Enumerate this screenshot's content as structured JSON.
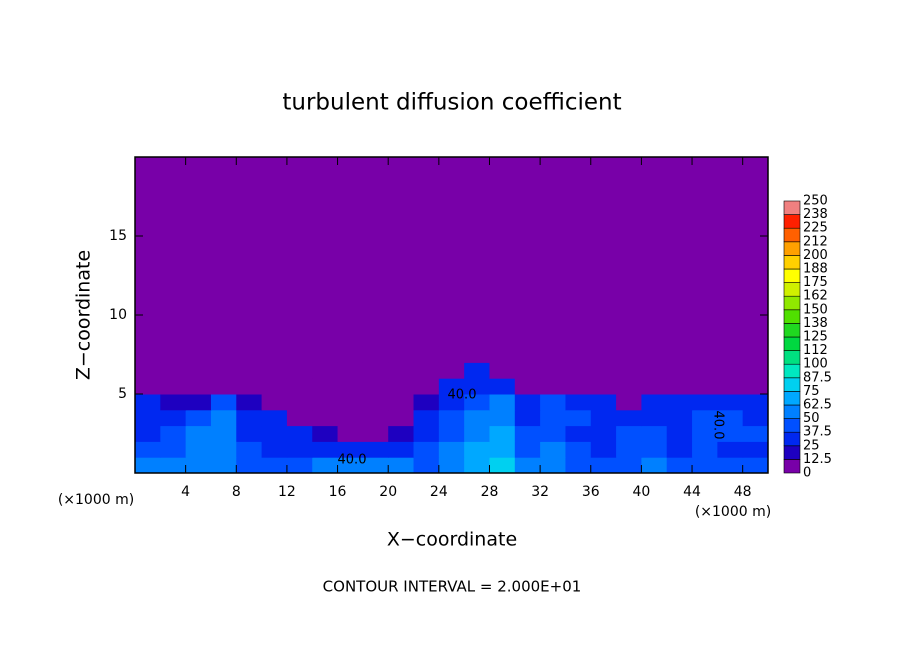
{
  "chart_data": {
    "type": "heatmap",
    "title": "turbulent diffusion coefficient",
    "x_label": "X−coordinate",
    "y_label": "Z−coordinate",
    "x_unit": "(×1000 m)",
    "y_unit": "(×1000 m)",
    "footer": "CONTOUR INTERVAL = 2.000E+01",
    "annotations": [
      "40.0",
      "40.0",
      "40.0"
    ],
    "xlim": [
      0,
      50
    ],
    "ylim": [
      0,
      20
    ],
    "xticks": [
      4,
      8,
      12,
      16,
      20,
      24,
      28,
      32,
      36,
      40,
      44,
      48
    ],
    "yticks": [
      5,
      10,
      15
    ],
    "x": [
      1,
      3,
      5,
      7,
      9,
      11,
      13,
      15,
      17,
      19,
      21,
      23,
      25,
      27,
      29,
      31,
      33,
      35,
      37,
      39,
      41,
      43,
      45,
      47,
      49
    ],
    "y": [
      0.5,
      1.5,
      2.5,
      3.5,
      4.5,
      5.5,
      6.5,
      7.5
    ],
    "z": [
      [
        50,
        55,
        60,
        55,
        45,
        40,
        45,
        55,
        60,
        60,
        55,
        45,
        55,
        70,
        75,
        50,
        55,
        45,
        40,
        45,
        50,
        40,
        45,
        40,
        40
      ],
      [
        40,
        45,
        55,
        60,
        40,
        35,
        30,
        30,
        30,
        25,
        30,
        40,
        50,
        65,
        70,
        45,
        50,
        40,
        35,
        40,
        45,
        35,
        40,
        35,
        35
      ],
      [
        35,
        40,
        50,
        60,
        35,
        30,
        25,
        15,
        10,
        10,
        20,
        35,
        45,
        60,
        65,
        40,
        45,
        35,
        35,
        40,
        40,
        35,
        40,
        40,
        40
      ],
      [
        30,
        35,
        40,
        50,
        30,
        25,
        10,
        5,
        3,
        3,
        10,
        30,
        40,
        55,
        60,
        35,
        40,
        40,
        35,
        35,
        35,
        35,
        40,
        40,
        35
      ],
      [
        25,
        15,
        20,
        40,
        20,
        10,
        3,
        0,
        0,
        0,
        3,
        20,
        35,
        45,
        50,
        30,
        40,
        35,
        30,
        5,
        35,
        30,
        35,
        35,
        30
      ],
      [
        10,
        5,
        5,
        5,
        3,
        0,
        0,
        0,
        0,
        0,
        0,
        5,
        25,
        35,
        30,
        10,
        10,
        5,
        0,
        0,
        0,
        0,
        5,
        10,
        5
      ],
      [
        0,
        0,
        0,
        0,
        0,
        0,
        0,
        0,
        0,
        0,
        0,
        0,
        10,
        25,
        10,
        0,
        0,
        0,
        0,
        0,
        0,
        0,
        0,
        0,
        0
      ],
      [
        0,
        0,
        0,
        0,
        0,
        0,
        0,
        0,
        0,
        0,
        0,
        0,
        0,
        10,
        0,
        0,
        0,
        0,
        0,
        0,
        0,
        0,
        0,
        0,
        0
      ]
    ],
    "levels": [
      0,
      12.5,
      25,
      37.5,
      50,
      62.5,
      75,
      87.5,
      100,
      {
        "value": 112.5,
        "label": "112"
      },
      125,
      {
        "value": 137.5,
        "label": "138"
      },
      150,
      {
        "value": 162.5,
        "label": "162"
      },
      175,
      {
        "value": 187.5,
        "label": "188"
      },
      200,
      {
        "value": 212.5,
        "label": "212"
      },
      225,
      {
        "value": 237.5,
        "label": "238"
      },
      250
    ],
    "colors": [
      "#7800a8",
      "#1e00c0",
      "#0028f0",
      "#0050ff",
      "#0080ff",
      "#00a8ff",
      "#00d0f0",
      "#00e8c0",
      "#00e080",
      "#00d840",
      "#20d820",
      "#50e000",
      "#90e800",
      "#d0f000",
      "#ffff00",
      "#ffd000",
      "#ffa000",
      "#ff6000",
      "#ff2000",
      "#f08080"
    ]
  }
}
